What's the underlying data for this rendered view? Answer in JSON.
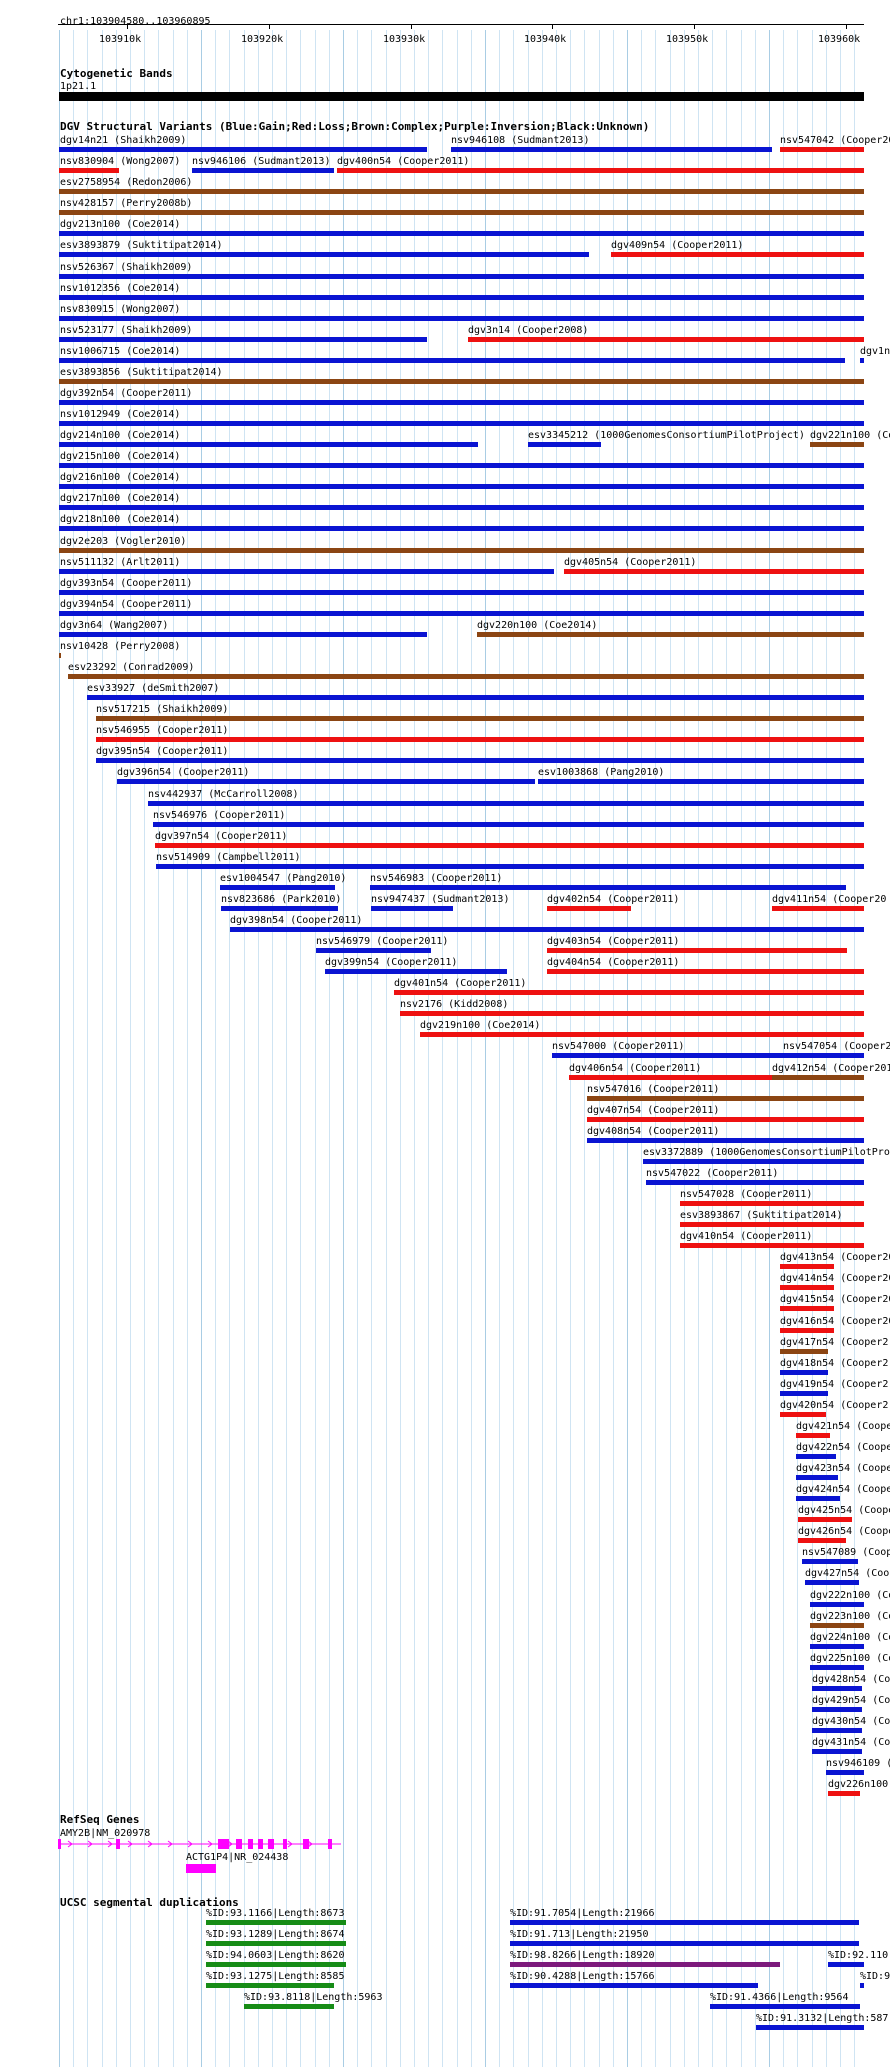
{
  "location": "chr1:103904580..103960895",
  "ruler": {
    "ticks": [
      "103910k",
      "103920k",
      "103930k",
      "103940k",
      "103950k",
      "103960k"
    ]
  },
  "tracks": {
    "cytoband": {
      "title": "Cytogenetic Bands",
      "label": "1p21.1"
    },
    "dgv": {
      "title": "DGV Structural Variants (Blue:Gain;Red:Loss;Brown:Complex;Purple:Inversion;Black:Unknown)"
    },
    "refseq": {
      "title": "RefSeq Genes"
    },
    "segdup": {
      "title": "UCSC segmental duplications"
    }
  },
  "colors": {
    "gain": "#0a14d2",
    "loss": "#ee1111",
    "complex": "#8b4513",
    "inversion": "#8b1a8b",
    "refseq": "#ff00ff",
    "segdup_green": "#168c16",
    "segdup_purple": "#7c1a7c"
  },
  "dgv_features": [
    {
      "label": "dgv14n21 (Shaikh2009)",
      "type": "gain"
    },
    {
      "label": "nsv946108 (Sudmant2013)",
      "type": "gain"
    },
    {
      "label": "nsv547042 (Cooper20",
      "type": "loss"
    },
    {
      "label": "nsv830904 (Wong2007)",
      "type": "loss"
    },
    {
      "label": "nsv946106 (Sudmant2013)",
      "type": "gain"
    },
    {
      "label": "dgv400n54 (Cooper2011)",
      "type": "loss"
    },
    {
      "label": "esv2758954 (Redon2006)",
      "type": "complex"
    },
    {
      "label": "nsv428157 (Perry2008b)",
      "type": "complex"
    },
    {
      "label": "dgv213n100 (Coe2014)",
      "type": "gain"
    },
    {
      "label": "esv3893879 (Suktitipat2014)",
      "type": "gain"
    },
    {
      "label": "dgv409n54 (Cooper2011)",
      "type": "loss"
    },
    {
      "label": "nsv526367 (Shaikh2009)",
      "type": "gain"
    },
    {
      "label": "nsv1012356 (Coe2014)",
      "type": "gain"
    },
    {
      "label": "nsv830915 (Wong2007)",
      "type": "gain"
    },
    {
      "label": "nsv523177 (Shaikh2009)",
      "type": "gain"
    },
    {
      "label": "dgv3n14 (Cooper2008)",
      "type": "loss"
    },
    {
      "label": "nsv1006715 (Coe2014)",
      "type": "gain"
    },
    {
      "label": "dgv1n",
      "type": "gain"
    },
    {
      "label": "esv3893856 (Suktitipat2014)",
      "type": "complex"
    },
    {
      "label": "dgv392n54 (Cooper2011)",
      "type": "gain"
    },
    {
      "label": "nsv1012949 (Coe2014)",
      "type": "gain"
    },
    {
      "label": "dgv214n100 (Coe2014)",
      "type": "gain"
    },
    {
      "label": "esv3345212 (1000GenomesConsortiumPilotProject)",
      "type": "gain"
    },
    {
      "label": "dgv221n100 (Co",
      "type": "complex"
    },
    {
      "label": "dgv215n100 (Coe2014)",
      "type": "gain"
    },
    {
      "label": "dgv216n100 (Coe2014)",
      "type": "gain"
    },
    {
      "label": "dgv217n100 (Coe2014)",
      "type": "gain"
    },
    {
      "label": "dgv218n100 (Coe2014)",
      "type": "gain"
    },
    {
      "label": "dgv2e203 (Vogler2010)",
      "type": "complex"
    },
    {
      "label": "nsv511132 (Arlt2011)",
      "type": "gain"
    },
    {
      "label": "dgv405n54 (Cooper2011)",
      "type": "loss"
    },
    {
      "label": "dgv393n54 (Cooper2011)",
      "type": "gain"
    },
    {
      "label": "dgv394n54 (Cooper2011)",
      "type": "gain"
    },
    {
      "label": "dgv3n64 (Wang2007)",
      "type": "gain"
    },
    {
      "label": "dgv220n100 (Coe2014)",
      "type": "complex"
    },
    {
      "label": "nsv10428 (Perry2008)",
      "type": "complex"
    },
    {
      "label": "esv23292 (Conrad2009)",
      "type": "complex"
    },
    {
      "label": "esv33927 (deSmith2007)",
      "type": "gain"
    },
    {
      "label": "nsv517215 (Shaikh2009)",
      "type": "complex"
    },
    {
      "label": "nsv546955 (Cooper2011)",
      "type": "loss"
    },
    {
      "label": "dgv395n54 (Cooper2011)",
      "type": "gain"
    },
    {
      "label": "dgv396n54 (Cooper2011)",
      "type": "gain"
    },
    {
      "label": "esv1003868 (Pang2010)",
      "type": "gain"
    },
    {
      "label": "nsv442937 (McCarroll2008)",
      "type": "gain"
    },
    {
      "label": "nsv546976 (Cooper2011)",
      "type": "gain"
    },
    {
      "label": "dgv397n54 (Cooper2011)",
      "type": "loss"
    },
    {
      "label": "nsv514909 (Campbell2011)",
      "type": "gain"
    },
    {
      "label": "esv1004547 (Pang2010)",
      "type": "gain"
    },
    {
      "label": "nsv546983 (Cooper2011)",
      "type": "gain"
    },
    {
      "label": "nsv823686 (Park2010)",
      "type": "gain"
    },
    {
      "label": "nsv947437 (Sudmant2013)",
      "type": "gain"
    },
    {
      "label": "dgv402n54 (Cooper2011)",
      "type": "loss"
    },
    {
      "label": "dgv411n54 (Cooper20",
      "type": "loss"
    },
    {
      "label": "dgv398n54 (Cooper2011)",
      "type": "gain"
    },
    {
      "label": "nsv546979 (Cooper2011)",
      "type": "gain"
    },
    {
      "label": "dgv403n54 (Cooper2011)",
      "type": "loss"
    },
    {
      "label": "dgv399n54 (Cooper2011)",
      "type": "gain"
    },
    {
      "label": "dgv404n54 (Cooper2011)",
      "type": "loss"
    },
    {
      "label": "dgv401n54 (Cooper2011)",
      "type": "loss"
    },
    {
      "label": "nsv2176 (Kidd2008)",
      "type": "loss"
    },
    {
      "label": "dgv219n100 (Coe2014)",
      "type": "loss"
    },
    {
      "label": "nsv547000 (Cooper2011)",
      "type": "gain"
    },
    {
      "label": "nsv547054 (Cooper2",
      "type": "gain"
    },
    {
      "label": "dgv406n54 (Cooper2011)",
      "type": "loss"
    },
    {
      "label": "dgv412n54 (Cooper201",
      "type": "complex"
    },
    {
      "label": "nsv547016 (Cooper2011)",
      "type": "complex"
    },
    {
      "label": "dgv407n54 (Cooper2011)",
      "type": "loss"
    },
    {
      "label": "dgv408n54 (Cooper2011)",
      "type": "gain"
    },
    {
      "label": "esv3372889 (1000GenomesConsortiumPilotProj",
      "type": "gain"
    },
    {
      "label": "nsv547022 (Cooper2011)",
      "type": "gain"
    },
    {
      "label": "nsv547028 (Cooper2011)",
      "type": "loss"
    },
    {
      "label": "esv3893867 (Suktitipat2014)",
      "type": "loss"
    },
    {
      "label": "dgv410n54 (Cooper2011)",
      "type": "loss"
    },
    {
      "label": "dgv413n54 (Cooper20",
      "type": "loss"
    },
    {
      "label": "dgv414n54 (Cooper20",
      "type": "loss"
    },
    {
      "label": "dgv415n54 (Cooper20",
      "type": "loss"
    },
    {
      "label": "dgv416n54 (Cooper20",
      "type": "loss"
    },
    {
      "label": "dgv417n54 (Cooper2",
      "type": "complex"
    },
    {
      "label": "dgv418n54 (Cooper2",
      "type": "gain"
    },
    {
      "label": "dgv419n54 (Cooper2",
      "type": "gain"
    },
    {
      "label": "dgv420n54 (Cooper2",
      "type": "loss"
    },
    {
      "label": "dgv421n54 (Cooper",
      "type": "loss"
    },
    {
      "label": "dgv422n54 (Coope",
      "type": "gain"
    },
    {
      "label": "dgv423n54 (Coope",
      "type": "gain"
    },
    {
      "label": "dgv424n54 (Coope",
      "type": "gain"
    },
    {
      "label": "dgv425n54 (Coope",
      "type": "loss"
    },
    {
      "label": "dgv426n54 (Coope",
      "type": "loss"
    },
    {
      "label": "nsv547089 (Coope",
      "type": "gain"
    },
    {
      "label": "dgv427n54 (Coope",
      "type": "gain"
    },
    {
      "label": "dgv222n100 (Co",
      "type": "gain"
    },
    {
      "label": "dgv223n100 (Co",
      "type": "complex"
    },
    {
      "label": "dgv224n100 (Co",
      "type": "gain"
    },
    {
      "label": "dgv225n100 (Co",
      "type": "gain"
    },
    {
      "label": "dgv428n54 (Coo",
      "type": "gain"
    },
    {
      "label": "dgv429n54 (Coo",
      "type": "gain"
    },
    {
      "label": "dgv430n54 (Coo",
      "type": "gain"
    },
    {
      "label": "dgv431n54 (Coo",
      "type": "gain"
    },
    {
      "label": "nsv946109 (",
      "type": "gain"
    },
    {
      "label": "dgv226n100",
      "type": "loss"
    }
  ],
  "refseq_features": [
    {
      "label": "AMY2B|NM_020978"
    },
    {
      "label": "ACTG1P4|NR_024438"
    }
  ],
  "segdup_features": [
    {
      "label": "%ID:93.1166|Length:8673",
      "type": "segdup_green"
    },
    {
      "label": "%ID:91.7054|Length:21966",
      "type": "gain"
    },
    {
      "label": "%ID:93.1289|Length:8674",
      "type": "segdup_green"
    },
    {
      "label": "%ID:91.713|Length:21950",
      "type": "gain"
    },
    {
      "label": "%ID:94.0603|Length:8620",
      "type": "segdup_green"
    },
    {
      "label": "%ID:98.8266|Length:18920",
      "type": "segdup_purple"
    },
    {
      "label": "%ID:92.110",
      "type": "gain"
    },
    {
      "label": "%ID:93.1275|Length:8585",
      "type": "segdup_green"
    },
    {
      "label": "%ID:90.4288|Length:15766",
      "type": "gain"
    },
    {
      "label": "%ID:9",
      "type": "gain"
    },
    {
      "label": "%ID:93.8118|Length:5963",
      "type": "segdup_green"
    },
    {
      "label": "%ID:91.4366|Length:9564",
      "type": "gain"
    },
    {
      "label": "%ID:91.3132|Length:587",
      "type": "gain"
    }
  ]
}
